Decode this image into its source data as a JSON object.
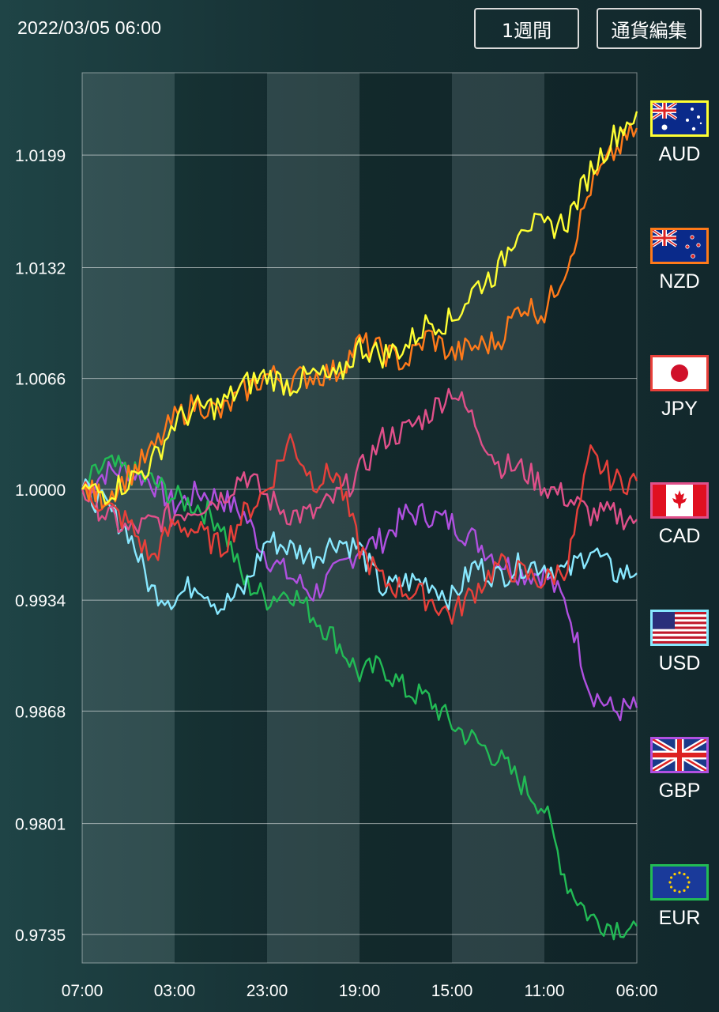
{
  "header": {
    "timestamp": "2022/03/05 06:00",
    "period_button": "1週間",
    "edit_button": "通貨編集"
  },
  "currencies": [
    {
      "code": "AUD",
      "color": "#ffff33",
      "flag": "australia-flag-icon"
    },
    {
      "code": "NZD",
      "color": "#ff7a1a",
      "flag": "new-zealand-flag-icon"
    },
    {
      "code": "JPY",
      "color": "#e8403a",
      "flag": "japan-flag-icon"
    },
    {
      "code": "CAD",
      "color": "#e0508a",
      "flag": "canada-flag-icon"
    },
    {
      "code": "USD",
      "color": "#88e8ff",
      "flag": "usa-flag-icon"
    },
    {
      "code": "GBP",
      "color": "#b050e0",
      "flag": "uk-flag-icon"
    },
    {
      "code": "EUR",
      "color": "#22bb55",
      "flag": "eu-flag-icon"
    }
  ],
  "chart_data": {
    "type": "line",
    "x_tick_labels": [
      "07:00",
      "03:00",
      "23:00",
      "19:00",
      "15:00",
      "11:00",
      "06:00"
    ],
    "y_tick_labels": [
      "1.0199",
      "1.0132",
      "1.0066",
      "1.0000",
      "0.9934",
      "0.9868",
      "0.9801",
      "0.9735"
    ],
    "ylim": [
      0.9718,
      1.0248
    ],
    "grid": true,
    "x_points": [
      0,
      1,
      2,
      3,
      4,
      5,
      6,
      7,
      8,
      9,
      10,
      11,
      12,
      13,
      14,
      15,
      16,
      17,
      18,
      19,
      20,
      21,
      22,
      23,
      24
    ],
    "series": [
      {
        "name": "AUD",
        "color": "#ffff33",
        "values": [
          1.0,
          0.9998,
          1.0005,
          1.0015,
          1.004,
          1.0048,
          1.005,
          1.0062,
          1.0068,
          1.0062,
          1.0068,
          1.0065,
          1.0085,
          1.008,
          1.0085,
          1.01,
          1.01,
          1.012,
          1.013,
          1.016,
          1.0155,
          1.016,
          1.019,
          1.021,
          1.0225
        ]
      },
      {
        "name": "NZD",
        "color": "#ff7a1a",
        "values": [
          1.0,
          0.9995,
          1.0008,
          1.0022,
          1.0042,
          1.0052,
          1.0045,
          1.0058,
          1.0068,
          1.0065,
          1.0068,
          1.007,
          1.0087,
          1.0082,
          1.0075,
          1.0092,
          1.008,
          1.0085,
          1.0088,
          1.011,
          1.0105,
          1.0135,
          1.018,
          1.02,
          1.0215
        ]
      },
      {
        "name": "JPY",
        "color": "#e8403a",
        "values": [
          1.0,
          0.999,
          0.998,
          0.9958,
          0.998,
          0.9975,
          0.9965,
          0.9985,
          1.0,
          1.003,
          1.0005,
          1.001,
          0.9965,
          0.9945,
          0.994,
          0.9935,
          0.9925,
          0.994,
          0.9955,
          0.995,
          0.9945,
          0.9955,
          1.002,
          1.0005,
          1.0005
        ]
      },
      {
        "name": "CAD",
        "color": "#e0508a",
        "values": [
          1.0,
          0.9985,
          0.9975,
          0.998,
          0.9985,
          0.999,
          0.9995,
          1.001,
          0.9995,
          0.9985,
          0.9985,
          0.9995,
          1.001,
          1.003,
          1.0035,
          1.0045,
          1.006,
          1.004,
          1.0015,
          1.0012,
          1.0002,
          0.9995,
          0.9985,
          0.9985,
          0.9982
        ]
      },
      {
        "name": "USD",
        "color": "#88e8ff",
        "values": [
          1.0,
          0.999,
          0.9975,
          0.994,
          0.9935,
          0.9945,
          0.993,
          0.994,
          0.997,
          0.9965,
          0.996,
          0.997,
          0.9965,
          0.994,
          0.9945,
          0.9945,
          0.9935,
          0.9955,
          0.9948,
          0.9955,
          0.9955,
          0.995,
          0.9965,
          0.995,
          0.995
        ]
      },
      {
        "name": "GBP",
        "color": "#b050e0",
        "values": [
          1.0,
          1.001,
          1.0012,
          1.0005,
          0.999,
          0.9998,
          0.9995,
          0.9985,
          0.996,
          0.9948,
          0.9938,
          0.995,
          0.9965,
          0.997,
          0.9985,
          0.9985,
          0.998,
          0.997,
          0.9958,
          0.995,
          0.995,
          0.993,
          0.988,
          0.9868,
          0.987
        ]
      },
      {
        "name": "EUR",
        "color": "#22bb55",
        "values": [
          1.0,
          1.0015,
          1.001,
          1.0005,
          0.9995,
          0.999,
          0.998,
          0.9945,
          0.9935,
          0.994,
          0.9925,
          0.991,
          0.989,
          0.9895,
          0.988,
          0.9875,
          0.986,
          0.985,
          0.984,
          0.9825,
          0.981,
          0.9765,
          0.9745,
          0.974,
          0.974
        ]
      }
    ]
  }
}
